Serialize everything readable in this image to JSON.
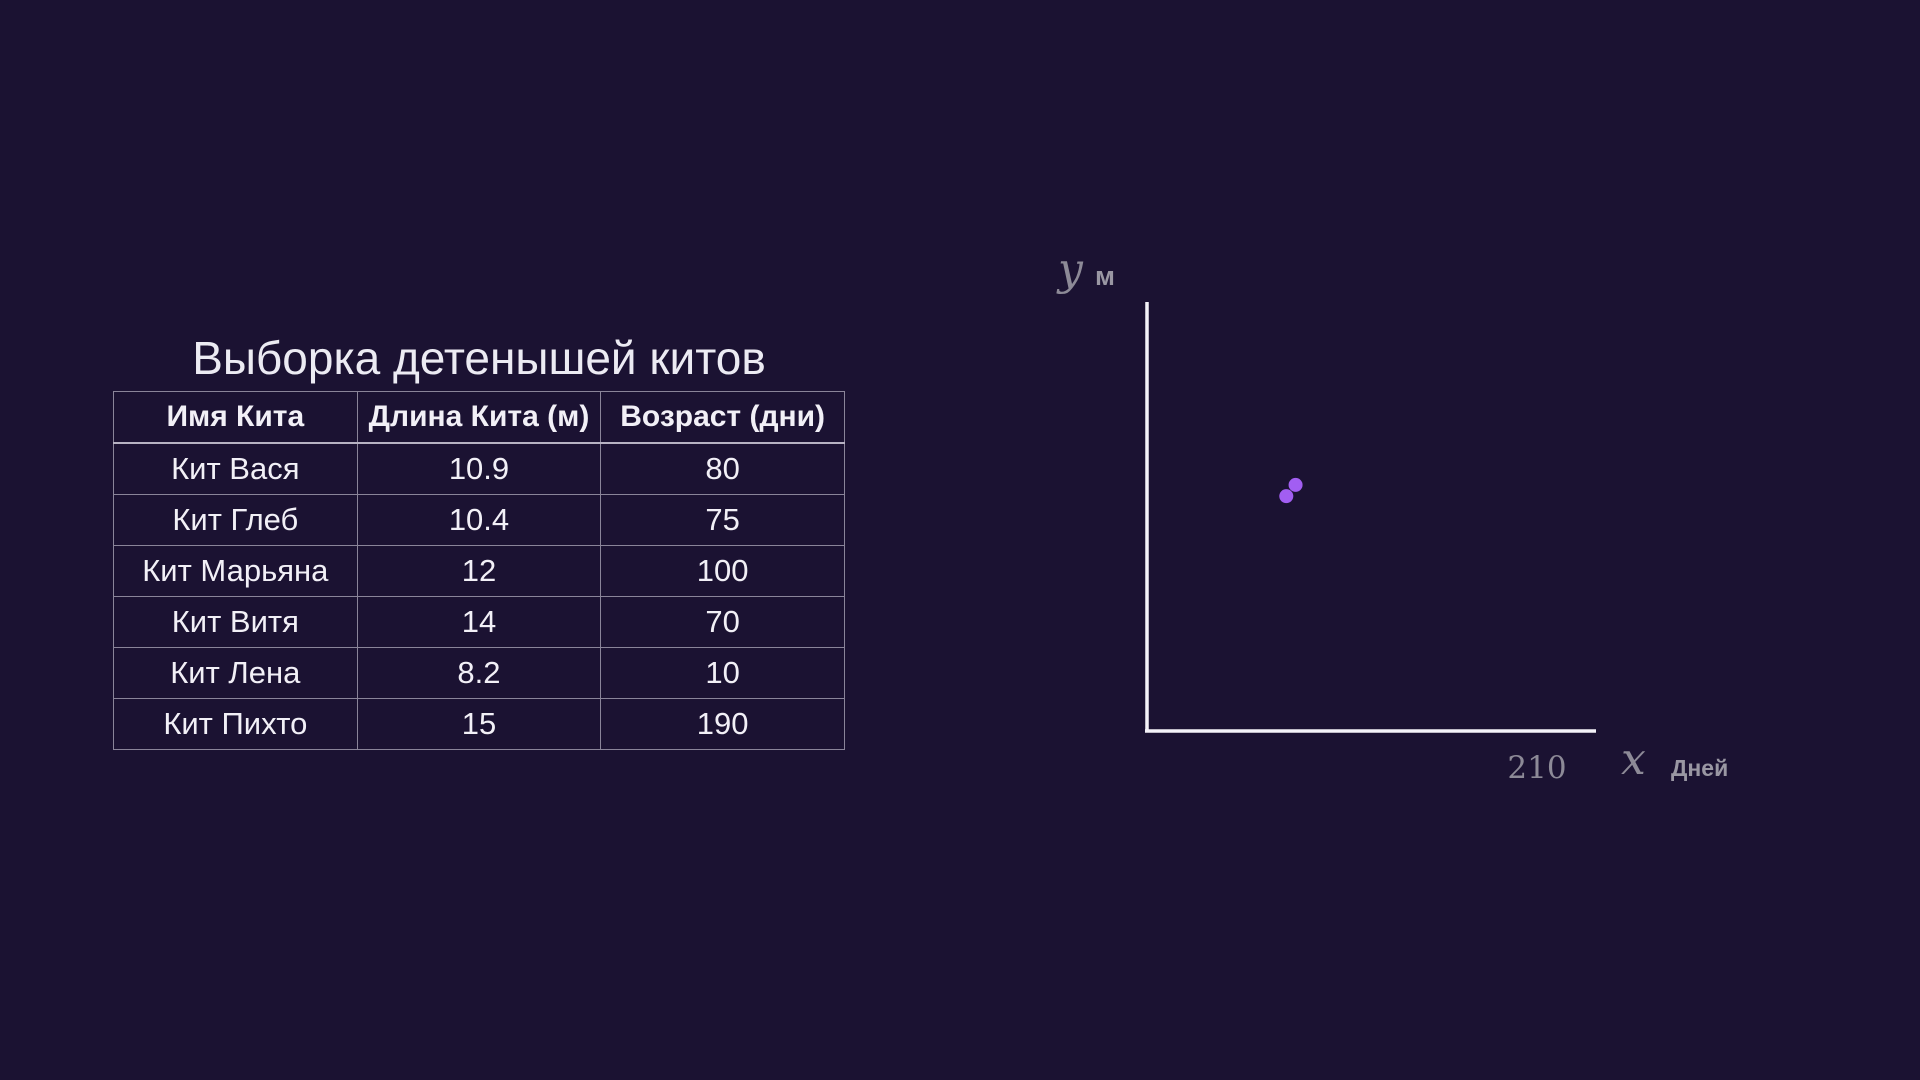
{
  "table": {
    "title": "Выборка детенышей китов",
    "headers": [
      "Имя Кита",
      "Длина Кита (м)",
      "Возраст (дни)"
    ],
    "rows": [
      [
        "Кит Вася",
        "10.9",
        "80"
      ],
      [
        "Кит Глеб",
        "10.4",
        "75"
      ],
      [
        "Кит Марьяна",
        "12",
        "100"
      ],
      [
        "Кит Витя",
        "14",
        "70"
      ],
      [
        "Кит Лена",
        "8.2",
        "10"
      ],
      [
        "Кит Пихто",
        "15",
        "190"
      ]
    ]
  },
  "chart_data": {
    "type": "scatter",
    "x_var": "x",
    "x_unit": "Дней",
    "y_var": "y",
    "y_unit": "м",
    "x_tick_labels": [
      "210"
    ],
    "xlim": [
      0,
      210
    ],
    "ylim": [
      0,
      19
    ],
    "grid": false,
    "points": [
      {
        "x": 80,
        "y": 10.9
      },
      {
        "x": 75,
        "y": 10.4
      }
    ],
    "point_color": "#a25ef2",
    "axis_color": "#f4f2f8"
  }
}
